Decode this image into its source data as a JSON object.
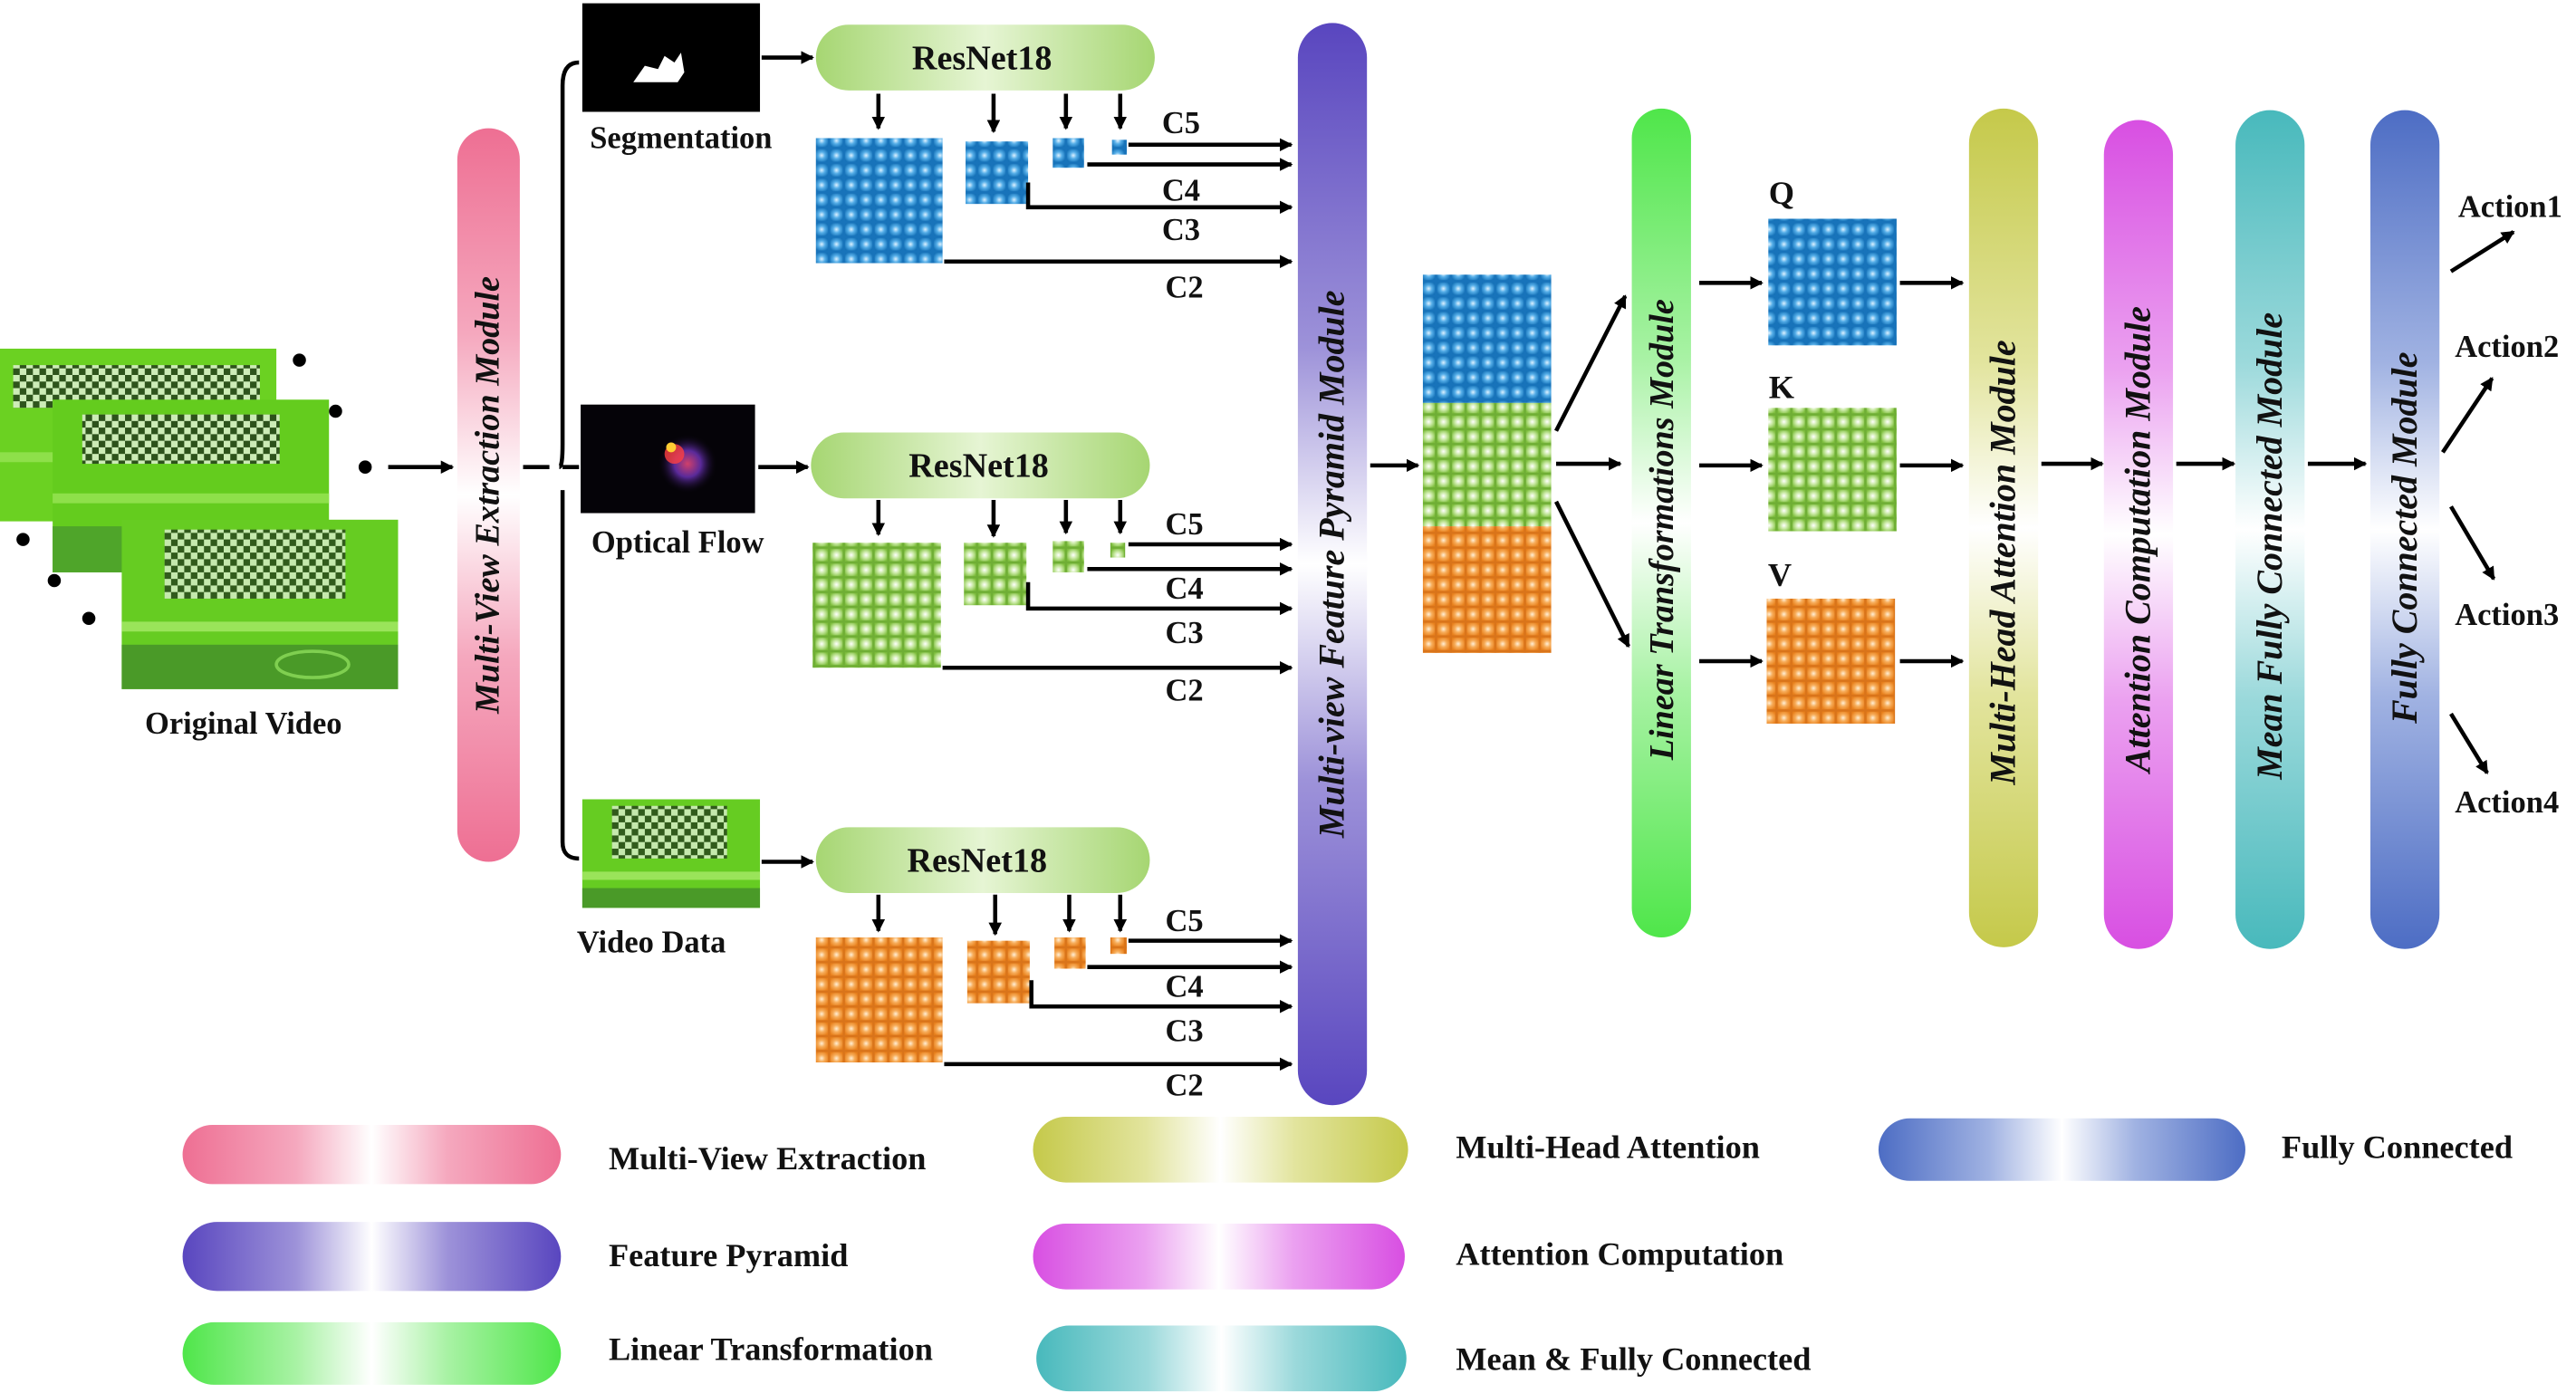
{
  "inputs": {
    "original_video": "Original Video",
    "segmentation": "Segmentation",
    "optical_flow": "Optical Flow",
    "video_data": "Video Data"
  },
  "backbone": "ResNet18",
  "pyramid_levels": [
    "C5",
    "C4",
    "C3",
    "C2"
  ],
  "qkv": [
    "Q",
    "K",
    "V"
  ],
  "modules": {
    "multi_view_extraction": "Multi-View Extraction Module",
    "feature_pyramid": "Multi-view Feature Pyramid Module",
    "linear_transformations": "Linear Transformations Module",
    "multi_head_attention": "Multi-Head Attention Module",
    "attention_computation": "Attention Computation Module",
    "mean_fully_connected": "Mean Fully Connected Module",
    "fully_connected": "Fully Connected Module"
  },
  "actions": [
    "Action1",
    "Action2",
    "Action3",
    "Action4"
  ],
  "legend": [
    {
      "label": "Multi-View Extraction",
      "color": "#ee6f93"
    },
    {
      "label": "Multi-Head Attention",
      "color": "#c5c94a"
    },
    {
      "label": "Fully Connected",
      "color": "#4d6dc4"
    },
    {
      "label": "Feature Pyramid",
      "color": "#5946bf"
    },
    {
      "label": "Attention Computation",
      "color": "#d84fe2"
    },
    {
      "label": "Linear Transformation",
      "color": "#4fe64a"
    },
    {
      "label": "Mean & Fully Connected",
      "color": "#48b9bc"
    }
  ],
  "colors": {
    "segmentation_grid": "#1a80c8",
    "optical_flow_grid": "#8fc653",
    "video_data_grid": "#f08a2a",
    "resnet_pill": "#b4dc84",
    "video_frame_green": "#66cc22"
  }
}
